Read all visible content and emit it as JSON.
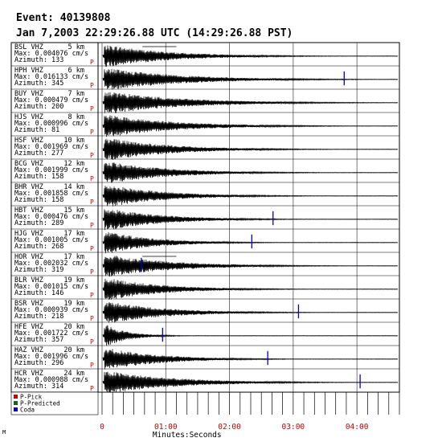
{
  "header": {
    "event": "Event: 40139808",
    "date": "Jan 7,2003 22:29:26.88 UTC (14:29:26.88 PST)"
  },
  "corner_mark": "M",
  "colors": {
    "trace": "#000000",
    "p_pick": "#cc0000",
    "p_predicted": "#116611",
    "coda": "#0000cc",
    "frame": "#000000"
  },
  "chart_data": {
    "type": "line",
    "title": "",
    "xlabel": "Minutes:Seconds",
    "ylabel": "",
    "x_range_seconds": [
      0,
      280
    ],
    "x_ticks": [
      "0",
      "01:00",
      "02:00",
      "03:00",
      "04:00"
    ],
    "x_tick_seconds": [
      0,
      60,
      120,
      180,
      240
    ],
    "minor_tick_seconds": 10,
    "grid": true,
    "legend": {
      "placement": "bottom-left",
      "entries": [
        {
          "label": "P-Pick",
          "color_key": "p_pick"
        },
        {
          "label": "P-Predicted",
          "color_key": "p_predicted"
        },
        {
          "label": "Coda",
          "color_key": "coda"
        }
      ]
    },
    "stations": [
      {
        "label": "BSL VHZ",
        "dist": "5 km",
        "max": "Max: 0.004076 cm/s",
        "az": "Azimuth: 133",
        "pick": "P",
        "coda_s": null,
        "decay_s": 125,
        "clip": 42
      },
      {
        "label": "HPH VHZ",
        "dist": "6 km",
        "max": "Max: 0.016133 cm/s",
        "az": "Azimuth: 345",
        "pick": "P",
        "coda_s": 228,
        "decay_s": 145,
        "clip": 0
      },
      {
        "label": "BUY VHZ",
        "dist": "7 km",
        "max": "Max: 0.000479 cm/s",
        "az": "Azimuth: 200",
        "pick": "P",
        "coda_s": null,
        "decay_s": 150,
        "clip": 0
      },
      {
        "label": "HJS VHZ",
        "dist": "8 km",
        "max": "Max: 0.000996 cm/s",
        "az": "Azimuth: 81",
        "pick": "P",
        "coda_s": null,
        "decay_s": 135,
        "clip": 0
      },
      {
        "label": "HSF VHZ",
        "dist": "10 km",
        "max": "Max: 0.001969 cm/s",
        "az": "Azimuth: 277",
        "pick": "P",
        "coda_s": null,
        "decay_s": 125,
        "clip": 0
      },
      {
        "label": "BCG VHZ",
        "dist": "12 km",
        "max": "Max: 0.001999 cm/s",
        "az": "Azimuth: 158",
        "pick": "P",
        "coda_s": null,
        "decay_s": 120,
        "clip": 0
      },
      {
        "label": "BHR VHZ",
        "dist": "14 km",
        "max": "Max: 0.001858 cm/s",
        "az": "Azimuth: 158",
        "pick": "P",
        "coda_s": null,
        "decay_s": 115,
        "clip": 0
      },
      {
        "label": "HBT VHZ",
        "dist": "15 km",
        "max": "Max: 0.000476 cm/s",
        "az": "Azimuth: 289",
        "pick": "P",
        "coda_s": 161,
        "decay_s": 110,
        "clip": 0
      },
      {
        "label": "HJG VHZ",
        "dist": "17 km",
        "max": "Max: 0.001005 cm/s",
        "az": "Azimuth: 268",
        "pick": "P",
        "coda_s": 141,
        "decay_s": 95,
        "clip": 0
      },
      {
        "label": "HOR VHZ",
        "dist": "17 km",
        "max": "Max: 0.002032 cm/s",
        "az": "Azimuth: 319",
        "pick": "P",
        "coda_s": 37,
        "decay_s": 130,
        "clip": 1
      },
      {
        "label": "BLR VHZ",
        "dist": "19 km",
        "max": "Max: 0.001015 cm/s",
        "az": "Azimuth: 146",
        "pick": "P",
        "coda_s": null,
        "decay_s": 110,
        "clip": 0
      },
      {
        "label": "BSR VHZ",
        "dist": "19 km",
        "max": "Max: 0.000939 cm/s",
        "az": "Azimuth: 218",
        "pick": "P",
        "coda_s": 185,
        "decay_s": 115,
        "clip": 0
      },
      {
        "label": "HFE VHZ",
        "dist": "20 km",
        "max": "Max: 0.001722 cm/s",
        "az": "Azimuth: 357",
        "pick": "P",
        "coda_s": 57,
        "decay_s": 45,
        "clip": 0
      },
      {
        "label": "HAZ VHZ",
        "dist": "20 km",
        "max": "Max: 0.001996 cm/s",
        "az": "Azimuth: 296",
        "pick": "P",
        "coda_s": 156,
        "decay_s": 105,
        "clip": 0
      },
      {
        "label": "HCR VHZ",
        "dist": "24 km",
        "max": "Max: 0.000988 cm/s",
        "az": "Azimuth: 314",
        "pick": "P",
        "coda_s": 243,
        "decay_s": 135,
        "clip": 0
      }
    ]
  }
}
